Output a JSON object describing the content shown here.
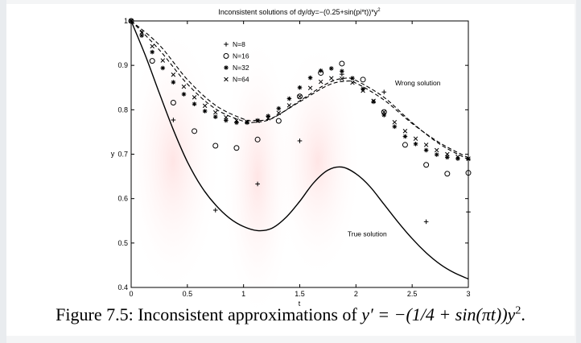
{
  "chart_data": {
    "type": "line",
    "title": "Inconsistent solutions of dy/dy=−(0.25+sin(pi*t))*y",
    "title_superscript": "2",
    "xlabel": "t",
    "ylabel": "y",
    "xlim": [
      0,
      3
    ],
    "ylim": [
      0.4,
      1.0
    ],
    "x_ticks": [
      0,
      0.5,
      1,
      1.5,
      2,
      2.5,
      3
    ],
    "y_ticks": [
      0.4,
      0.5,
      0.6,
      0.7,
      0.8,
      0.9,
      1.0
    ],
    "x_tick_labels": [
      "0",
      "0.5",
      "1",
      "1.5",
      "2",
      "2.5",
      "3"
    ],
    "y_tick_labels": [
      "0.4",
      "0.5",
      "0.6",
      "0.7",
      "0.8",
      "0.9",
      "1"
    ],
    "grid": false,
    "legend_position": "upper-left",
    "annotations": [
      {
        "text": "Wrong solution",
        "x": 2.55,
        "y": 0.855
      },
      {
        "text": "True solution",
        "x": 2.1,
        "y": 0.515
      }
    ],
    "series": [
      {
        "name": "N=8",
        "marker": "+",
        "x": [
          0,
          0.375,
          0.75,
          1.125,
          1.5,
          1.875,
          2.25,
          2.625,
          3.0
        ],
        "y": [
          1.0,
          0.777,
          0.574,
          0.633,
          0.73,
          0.88,
          0.84,
          0.548,
          0.57
        ]
      },
      {
        "name": "N=16",
        "marker": "o",
        "x": [
          0,
          0.1875,
          0.375,
          0.5625,
          0.75,
          0.9375,
          1.125,
          1.3125,
          1.5,
          1.6875,
          1.875,
          2.0625,
          2.25,
          2.4375,
          2.625,
          2.8125,
          3.0
        ],
        "y": [
          1.0,
          0.91,
          0.816,
          0.752,
          0.719,
          0.714,
          0.733,
          0.775,
          0.83,
          0.883,
          0.904,
          0.868,
          0.795,
          0.721,
          0.676,
          0.656,
          0.658
        ]
      },
      {
        "name": "N=32",
        "marker": "*",
        "x": [
          0,
          0.09375,
          0.1875,
          0.28125,
          0.375,
          0.46875,
          0.5625,
          0.65625,
          0.75,
          0.84375,
          0.9375,
          1.03125,
          1.125,
          1.21875,
          1.3125,
          1.40625,
          1.5,
          1.59375,
          1.6875,
          1.78125,
          1.875,
          1.96875,
          2.0625,
          2.15625,
          2.25,
          2.34375,
          2.4375,
          2.53125,
          2.625,
          2.71875,
          2.8125,
          2.90625,
          3.0
        ],
        "y": [
          1.0,
          0.967,
          0.93,
          0.894,
          0.862,
          0.835,
          0.813,
          0.797,
          0.784,
          0.776,
          0.771,
          0.771,
          0.776,
          0.786,
          0.803,
          0.825,
          0.85,
          0.872,
          0.888,
          0.893,
          0.887,
          0.871,
          0.847,
          0.818,
          0.788,
          0.762,
          0.74,
          0.723,
          0.709,
          0.699,
          0.693,
          0.69,
          0.689
        ]
      },
      {
        "name": "N=64",
        "marker": "x",
        "x": [
          0,
          0.09375,
          0.1875,
          0.28125,
          0.375,
          0.46875,
          0.5625,
          0.65625,
          0.75,
          0.84375,
          0.9375,
          1.03125,
          1.125,
          1.21875,
          1.3125,
          1.40625,
          1.5,
          1.59375,
          1.6875,
          1.78125,
          1.875,
          1.96875,
          2.0625,
          2.15625,
          2.25,
          2.34375,
          2.4375,
          2.53125,
          2.625,
          2.71875,
          2.8125,
          2.90625,
          3.0
        ],
        "y": [
          1.0,
          0.974,
          0.943,
          0.911,
          0.879,
          0.852,
          0.828,
          0.809,
          0.794,
          0.783,
          0.776,
          0.773,
          0.775,
          0.781,
          0.793,
          0.81,
          0.83,
          0.849,
          0.863,
          0.871,
          0.87,
          0.861,
          0.843,
          0.82,
          0.795,
          0.772,
          0.752,
          0.735,
          0.721,
          0.709,
          0.7,
          0.694,
          0.69
        ]
      },
      {
        "name": "",
        "style": "dashed",
        "x": [
          0,
          0.25,
          0.5,
          0.75,
          1.0,
          1.1,
          1.25,
          1.5,
          1.75,
          1.9,
          2.0,
          2.25,
          2.5,
          2.75,
          3.0
        ],
        "y": [
          1.0,
          0.946,
          0.868,
          0.81,
          0.779,
          0.776,
          0.781,
          0.818,
          0.855,
          0.864,
          0.86,
          0.822,
          0.769,
          0.725,
          0.692
        ]
      },
      {
        "name": "",
        "style": "dashed",
        "x": [
          0,
          0.25,
          0.5,
          0.75,
          1.0,
          1.1,
          1.25,
          1.5,
          1.75,
          1.9,
          2.0,
          2.25,
          2.5,
          2.75,
          3.0
        ],
        "y": [
          1.0,
          0.935,
          0.858,
          0.802,
          0.774,
          0.772,
          0.78,
          0.82,
          0.86,
          0.871,
          0.866,
          0.828,
          0.771,
          0.722,
          0.688
        ]
      },
      {
        "name": "",
        "style": "solid",
        "x": [
          0,
          0.125,
          0.25,
          0.375,
          0.5,
          0.625,
          0.75,
          0.875,
          1.0,
          1.125,
          1.25,
          1.375,
          1.5,
          1.625,
          1.75,
          1.875,
          2.0,
          2.125,
          2.25,
          2.375,
          2.5,
          2.625,
          2.75,
          2.875,
          3.0
        ],
        "y": [
          1.0,
          0.923,
          0.838,
          0.755,
          0.683,
          0.627,
          0.586,
          0.556,
          0.537,
          0.528,
          0.533,
          0.557,
          0.594,
          0.636,
          0.664,
          0.671,
          0.656,
          0.627,
          0.587,
          0.547,
          0.51,
          0.478,
          0.452,
          0.433,
          0.419
        ]
      }
    ]
  },
  "caption": {
    "prefix": "Figure 7.5: Inconsistent approximations of ",
    "equation": "y′ = −(1/4 + sin(πt))y",
    "superscript": "2",
    "suffix": "."
  }
}
